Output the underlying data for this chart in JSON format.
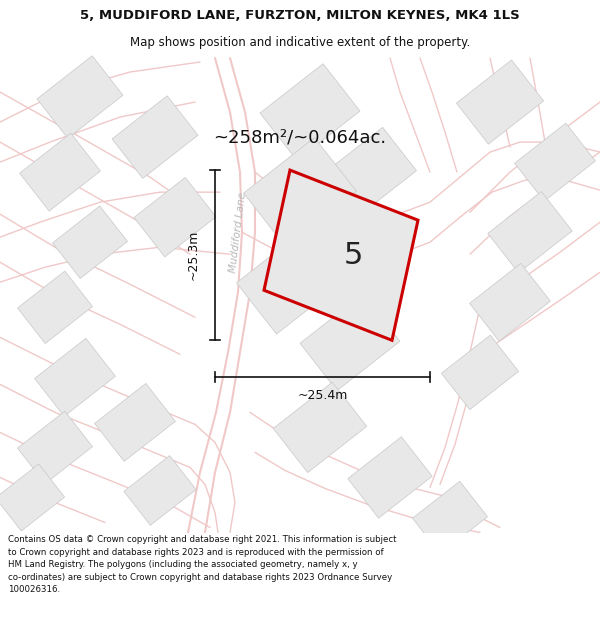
{
  "title_line1": "5, MUDDIFORD LANE, FURZTON, MILTON KEYNES, MK4 1LS",
  "title_line2": "Map shows position and indicative extent of the property.",
  "area_label": "~258m²/~0.064ac.",
  "plot_number": "5",
  "dim_vertical": "~25.3m",
  "dim_horizontal": "~25.4m",
  "road_label": "Muddiford Lane",
  "footer_text": "Contains OS data © Crown copyright and database right 2021. This information is subject\nto Crown copyright and database rights 2023 and is reproduced with the permission of\nHM Land Registry. The polygons (including the associated geometry, namely x, y\nco-ordinates) are subject to Crown copyright and database rights 2023 Ordnance Survey\n100026316.",
  "bg_color": "#ffffff",
  "map_bg": "#ffffff",
  "block_fill": "#e8e8e8",
  "block_edge": "#c8c8c8",
  "road_color": "#f0c8c8",
  "plot_fill": "#e8e8e8",
  "plot_edge": "#cc0000",
  "road_label_color": "#b8b8b8",
  "dim_color": "#111111",
  "title_fontsize": 9.5,
  "subtitle_fontsize": 8.5,
  "area_fontsize": 13,
  "plot_num_fontsize": 22,
  "dim_fontsize": 9,
  "road_label_fontsize": 7.5,
  "footer_fontsize": 6.2
}
